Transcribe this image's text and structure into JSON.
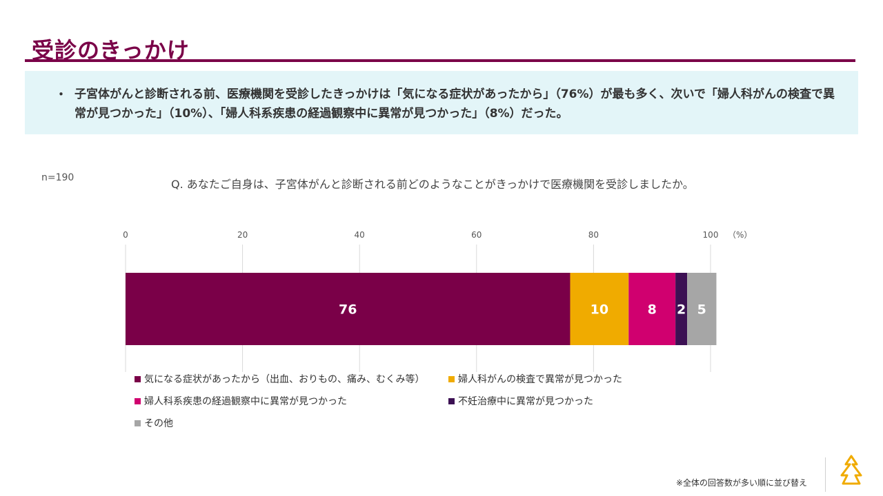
{
  "page": {
    "title": "受診のきっかけ",
    "summary_bullet": "・",
    "summary_text": "子宮体がんと診断される前、医療機関を受診したきっかけは「気になる症状があったから」（76%）が最も多く、次いで「婦人科がんの検査で異常が見つかった」（10%）、「婦人科系疾患の経過観察中に異常が見つかった」（8%）だった。",
    "sample_size": "n=190",
    "question": "Q. あなたご自身は、子宮体がんと診断される前どのようなことがきっかけで医療機関を受診しましたか。",
    "footnote": "※全体の回答数が多い順に並び替え"
  },
  "chart_data": {
    "type": "bar",
    "orientation": "horizontal",
    "stacked": true,
    "unit_label": "（%）",
    "xlim": [
      0,
      100
    ],
    "ticks": [
      0,
      20,
      40,
      60,
      80,
      100
    ],
    "grid": true,
    "legend_position": "bottom",
    "series": [
      {
        "name": "気になる症状があったから（出血、おりもの、痛み、むくみ等）",
        "value": 76,
        "color": "#7a0048",
        "label_color": "#ffffff"
      },
      {
        "name": "婦人科がんの検査で異常が見つかった",
        "value": 10,
        "color": "#f0ab00",
        "label_color": "#ffffff"
      },
      {
        "name": "婦人科系疾患の経過観察中に異常が見つかった",
        "value": 8,
        "color": "#d0006f",
        "label_color": "#ffffff"
      },
      {
        "name": "不妊治療中に異常が見つかった",
        "value": 2,
        "color": "#3c1053",
        "label_color": "#ffffff"
      },
      {
        "name": "その他",
        "value": 5,
        "color": "#a6a6a6",
        "label_color": "#ffffff"
      }
    ]
  }
}
